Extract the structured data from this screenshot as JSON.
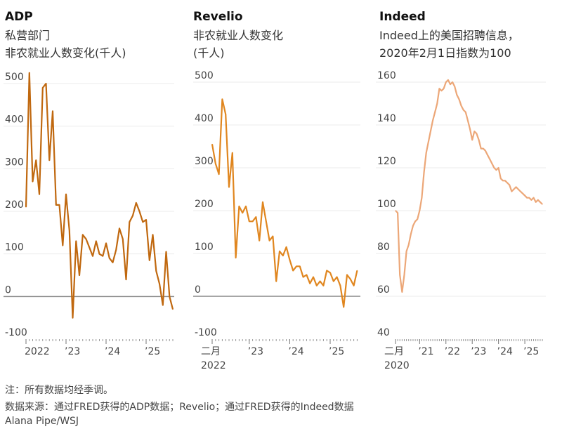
{
  "chart_data": [
    {
      "type": "line",
      "title": "ADP",
      "subtitle": [
        "私营部门",
        "非农就业人数变化(千人)"
      ],
      "color": "#c0680f",
      "start": "2022-01",
      "ylim": [
        -100,
        500
      ],
      "yticks": [
        500,
        400,
        300,
        200,
        100,
        0,
        -100
      ],
      "xtick_labels": [
        {
          "label": "2022",
          "month_index": 0
        },
        {
          "label": "’23",
          "month_index": 12
        },
        {
          "label": "’24",
          "month_index": 24
        },
        {
          "label": "’25",
          "month_index": 36
        }
      ],
      "values": [
        210,
        525,
        270,
        320,
        240,
        490,
        500,
        320,
        435,
        215,
        215,
        120,
        240,
        155,
        -50,
        130,
        50,
        145,
        135,
        115,
        95,
        130,
        100,
        95,
        125,
        90,
        80,
        110,
        160,
        135,
        40,
        175,
        190,
        220,
        200,
        175,
        180,
        85,
        145,
        60,
        30,
        -20,
        105,
        0,
        -30
      ]
    },
    {
      "type": "line",
      "title": "Revelio",
      "subtitle": [
        "非农就业人数变化",
        "(千人)"
      ],
      "color": "#e0861f",
      "start": "2022-02",
      "ylim": [
        -100,
        500
      ],
      "yticks": [
        500,
        400,
        300,
        200,
        100,
        0,
        -100
      ],
      "xtick_labels": [
        {
          "label": "二月",
          "label2": "2022",
          "month_index": 0
        },
        {
          "label": "’23",
          "month_index": 11
        },
        {
          "label": "’24",
          "month_index": 23
        },
        {
          "label": "’25",
          "month_index": 35
        }
      ],
      "values": [
        355,
        310,
        285,
        460,
        425,
        255,
        335,
        90,
        210,
        195,
        210,
        175,
        175,
        185,
        130,
        220,
        175,
        130,
        140,
        35,
        105,
        95,
        115,
        85,
        60,
        70,
        70,
        45,
        50,
        30,
        45,
        25,
        35,
        25,
        60,
        55,
        35,
        45,
        25,
        -25,
        50,
        40,
        25,
        60
      ]
    },
    {
      "type": "line",
      "title": "Indeed",
      "subtitle": [
        "Indeed上的美国招聘信息，",
        "2020年2月1日指数为100"
      ],
      "color": "#eca778",
      "start": "2020-02",
      "ylim": [
        40,
        160
      ],
      "yticks": [
        160,
        140,
        120,
        100,
        80,
        60,
        40
      ],
      "xtick_labels": [
        {
          "label": "二月",
          "label2": "2020",
          "month_index": 0
        },
        {
          "label": "’21",
          "month_index": 11
        },
        {
          "label": "’22",
          "month_index": 23
        },
        {
          "label": "’23",
          "month_index": 35
        },
        {
          "label": "’24",
          "month_index": 47
        },
        {
          "label": "’25",
          "month_index": 59
        }
      ],
      "values": [
        100,
        99,
        70,
        62,
        70,
        81,
        84,
        89,
        93,
        95,
        96,
        100,
        106,
        118,
        127,
        132,
        137,
        142,
        146,
        150,
        157,
        156,
        157,
        160,
        161,
        159,
        160,
        158,
        154,
        152,
        149,
        147,
        146,
        142,
        138,
        133,
        137,
        136,
        133,
        129,
        129,
        128,
        126,
        124,
        122,
        120,
        119,
        120,
        115,
        114,
        114,
        113,
        112,
        109,
        110,
        111,
        110,
        109,
        108,
        107,
        106,
        106,
        105,
        106,
        104,
        105,
        104,
        103
      ]
    }
  ],
  "footer": {
    "note": "注：所有数据均经季调。",
    "source": "数据来源：通过FRED获得的ADP数据；Revelio；通过FRED获得的Indeed数据",
    "credit": "Alana Pipe/WSJ"
  }
}
